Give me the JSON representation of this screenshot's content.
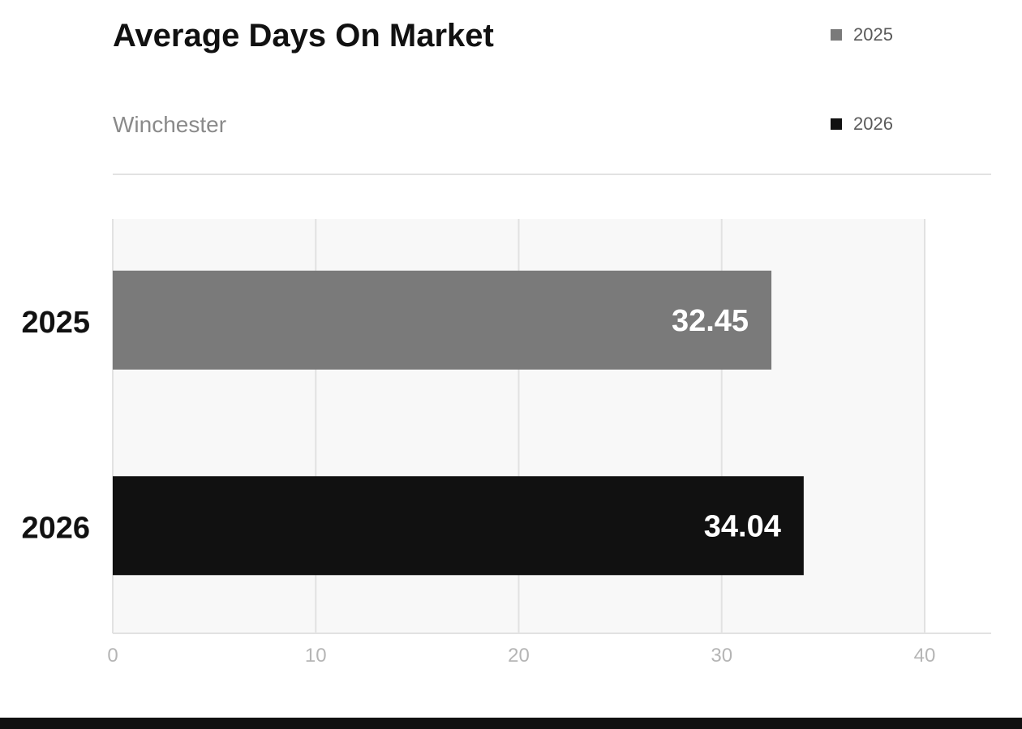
{
  "header": {
    "title": "Average Days On Market",
    "subtitle": "Winchester"
  },
  "legend": [
    {
      "label": "2025",
      "color": "#7a7a7a"
    },
    {
      "label": "2026",
      "color": "#111111"
    }
  ],
  "chart_data": {
    "type": "bar",
    "orientation": "horizontal",
    "title": "Average Days On Market",
    "subtitle": "Winchester",
    "categories": [
      "2025",
      "2026"
    ],
    "values": [
      32.45,
      34.04
    ],
    "value_labels": [
      "32.45",
      "34.04"
    ],
    "colors": [
      "#7a7a7a",
      "#111111"
    ],
    "xlim": [
      0,
      40
    ],
    "xticks": [
      0,
      10,
      20,
      30,
      40
    ],
    "xlabel": "",
    "ylabel": "",
    "grid": true,
    "legend_position": "top-right"
  }
}
